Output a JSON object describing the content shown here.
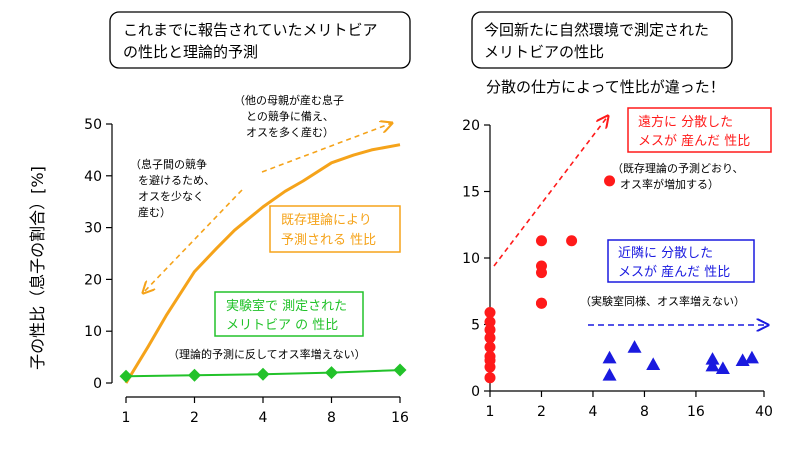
{
  "titles": {
    "left_line1": "これまでに報告されていたメリトビア",
    "left_line2": "の性比と理論的予測",
    "right_line1": "今回新たに自然環境で測定された",
    "right_line2": "メリトビアの性比",
    "right_subtitle": "分散の仕方によって性比が違った！"
  },
  "ylabel": "子の性比（息子の割合）[%]",
  "colors": {
    "theory": "#f5a31a",
    "lab": "#22c22a",
    "distant": "#ff1a1a",
    "near": "#1a1adf"
  },
  "annotations": {
    "left_upper": [
      "（他の母親が産む息子",
      "との競争に備え、",
      "オスを多く産む）"
    ],
    "left_lower": [
      "（息子間の競争",
      "を避けるため、",
      "オスを少なく",
      "産む）"
    ],
    "theory_box": [
      "既存理論により",
      "予測される 性比"
    ],
    "lab_box": [
      "実験室で 測定された",
      "メリトビア の 性比"
    ],
    "lab_note": "（理論的予測に反してオス率増えない）",
    "distant_box": [
      "遠方に 分散した",
      "メスが 産んだ 性比"
    ],
    "distant_note": [
      "（既存理論の予測どおり、",
      "オス率が増加する）"
    ],
    "near_box": [
      "近隣に 分散した",
      "メスが 産んだ 性比"
    ],
    "near_note": "（実験室同様、オス率増えない）"
  },
  "chart_data": [
    {
      "type": "line",
      "x_scale": "log2",
      "x_ticks": [
        "1",
        "2",
        "4",
        "8",
        "16"
      ],
      "x_range": [
        1,
        16
      ],
      "y_ticks": [
        "0",
        "10",
        "20",
        "30",
        "40",
        "50"
      ],
      "ylim": [
        0,
        50
      ],
      "series": [
        {
          "name": "既存理論により予測される 性比",
          "x": [
            1,
            1.25,
            1.5,
            2,
            2.5,
            3,
            4,
            5,
            6,
            8,
            10,
            12,
            16
          ],
          "y": [
            0,
            7,
            13,
            21.5,
            26,
            29.5,
            34,
            37,
            39,
            42.5,
            44,
            45,
            46
          ]
        },
        {
          "name": "実験室で 測定された メリトビア の 性比",
          "x": [
            1,
            2,
            4,
            8,
            16
          ],
          "y": [
            1.3,
            1.5,
            1.7,
            2.0,
            2.5
          ]
        }
      ]
    },
    {
      "type": "scatter",
      "x_scale": "log2",
      "x_ticks": [
        "1",
        "2",
        "4",
        "8",
        "16",
        "40"
      ],
      "x_range": [
        1,
        40
      ],
      "y_ticks": [
        "0",
        "5",
        "10",
        "15",
        "20"
      ],
      "ylim": [
        0,
        20
      ],
      "series": [
        {
          "name": "遠方に 分散した メスが 産んだ 性比",
          "marker": "circle",
          "x": [
            1,
            1,
            1,
            1,
            1,
            1,
            1,
            1,
            1,
            2,
            2,
            2,
            2,
            2,
            3,
            5
          ],
          "y": [
            1.0,
            1.8,
            2.6,
            3.3,
            4.0,
            4.6,
            5.2,
            5.9,
            2.3,
            6.6,
            8.9,
            9.4,
            11.3,
            6.6,
            11.3,
            15.8
          ]
        },
        {
          "name": "近隣に 分散した メスが 産んだ 性比",
          "marker": "triangle",
          "x": [
            5,
            5,
            7,
            9,
            20,
            20,
            23,
            30,
            34
          ],
          "y": [
            1.2,
            2.5,
            3.3,
            2.0,
            1.9,
            2.4,
            1.7,
            2.3,
            2.5
          ]
        }
      ]
    }
  ]
}
